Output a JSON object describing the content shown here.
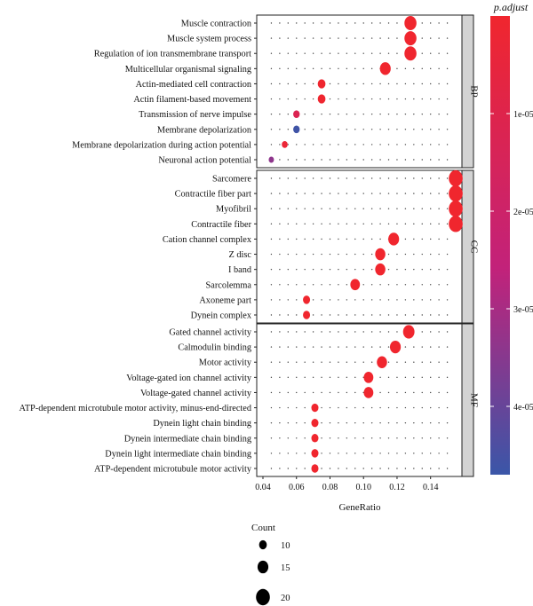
{
  "chart_data": {
    "type": "scatter",
    "xlabel": "GeneRatio",
    "x_ticks": [
      0.04,
      0.06,
      0.08,
      0.1,
      0.12,
      0.14
    ],
    "x_tick_labels": [
      "0.04",
      "0.06",
      "0.08",
      "0.10",
      "0.12",
      "0.14"
    ],
    "xlim": [
      0.04,
      0.155
    ],
    "color_legend": {
      "title": "p.adjust",
      "ticks": [
        1e-05,
        2e-05,
        3e-05,
        4e-05
      ],
      "tick_labels": [
        "1e-05",
        "2e-05",
        "3e-05",
        "4e-05"
      ],
      "range": [
        0,
        4.7e-05
      ],
      "low_color": "#f0262e",
      "mid_color": "#c2227a",
      "high_color": "#3a56a8"
    },
    "size_legend": {
      "title": "Count",
      "values": [
        10,
        15,
        20
      ],
      "labels": [
        "10",
        "15",
        "20"
      ]
    },
    "panels": [
      {
        "name": "BP",
        "terms": [
          {
            "label": "Muscle contraction",
            "x": 0.128,
            "count": 17,
            "p_adjust": 1e-07
          },
          {
            "label": "Muscle system process",
            "x": 0.128,
            "count": 17,
            "p_adjust": 2e-07
          },
          {
            "label": "Regulation of ion transmembrane transport",
            "x": 0.128,
            "count": 17,
            "p_adjust": 5e-07
          },
          {
            "label": "Multicellular organismal signaling",
            "x": 0.113,
            "count": 15,
            "p_adjust": 1e-07
          },
          {
            "label": "Actin-mediated cell contraction",
            "x": 0.075,
            "count": 10,
            "p_adjust": 3e-07
          },
          {
            "label": "Actin filament-based movement",
            "x": 0.075,
            "count": 10,
            "p_adjust": 5e-07
          },
          {
            "label": "Transmission of nerve impulse",
            "x": 0.06,
            "count": 8,
            "p_adjust": 1.2e-05
          },
          {
            "label": "Membrane depolarization",
            "x": 0.06,
            "count": 8,
            "p_adjust": 4.6e-05
          },
          {
            "label": "Membrane depolarization during action potential",
            "x": 0.053,
            "count": 7,
            "p_adjust": 3e-06
          },
          {
            "label": "Neuronal action potential",
            "x": 0.045,
            "count": 6,
            "p_adjust": 3.4e-05
          }
        ]
      },
      {
        "name": "CC",
        "terms": [
          {
            "label": "Sarcomere",
            "x": 0.155,
            "count": 20,
            "p_adjust": 1e-08
          },
          {
            "label": "Contractile fiber part",
            "x": 0.155,
            "count": 20,
            "p_adjust": 1e-08
          },
          {
            "label": "Myofibril",
            "x": 0.155,
            "count": 20,
            "p_adjust": 1e-08
          },
          {
            "label": "Contractile fiber",
            "x": 0.155,
            "count": 20,
            "p_adjust": 1e-08
          },
          {
            "label": "Cation channel complex",
            "x": 0.118,
            "count": 15,
            "p_adjust": 1e-07
          },
          {
            "label": "Z disc",
            "x": 0.11,
            "count": 14,
            "p_adjust": 1e-07
          },
          {
            "label": "I band",
            "x": 0.11,
            "count": 14,
            "p_adjust": 1e-07
          },
          {
            "label": "Sarcolemma",
            "x": 0.095,
            "count": 13,
            "p_adjust": 1e-07
          },
          {
            "label": "Axoneme part",
            "x": 0.066,
            "count": 9,
            "p_adjust": 1e-07
          },
          {
            "label": "Dynein complex",
            "x": 0.066,
            "count": 9,
            "p_adjust": 1e-07
          }
        ]
      },
      {
        "name": "MF",
        "terms": [
          {
            "label": "Gated channel activity",
            "x": 0.127,
            "count": 16,
            "p_adjust": 1e-07
          },
          {
            "label": "Calmodulin binding",
            "x": 0.119,
            "count": 15,
            "p_adjust": 1e-07
          },
          {
            "label": "Motor activity",
            "x": 0.111,
            "count": 14,
            "p_adjust": 1e-07
          },
          {
            "label": "Voltage-gated ion channel activity",
            "x": 0.103,
            "count": 13,
            "p_adjust": 1e-07
          },
          {
            "label": "Voltage-gated channel activity",
            "x": 0.103,
            "count": 13,
            "p_adjust": 1e-07
          },
          {
            "label": "ATP-dependent microtubule motor activity, minus-end-directed",
            "x": 0.071,
            "count": 9,
            "p_adjust": 1e-07
          },
          {
            "label": "Dynein light chain binding",
            "x": 0.071,
            "count": 9,
            "p_adjust": 1e-07
          },
          {
            "label": "Dynein intermediate chain binding",
            "x": 0.071,
            "count": 9,
            "p_adjust": 1e-07
          },
          {
            "label": "Dynein light intermediate chain binding",
            "x": 0.071,
            "count": 9,
            "p_adjust": 1e-07
          },
          {
            "label": "ATP-dependent microtubule motor activity",
            "x": 0.071,
            "count": 9,
            "p_adjust": 1e-07
          }
        ]
      }
    ]
  }
}
